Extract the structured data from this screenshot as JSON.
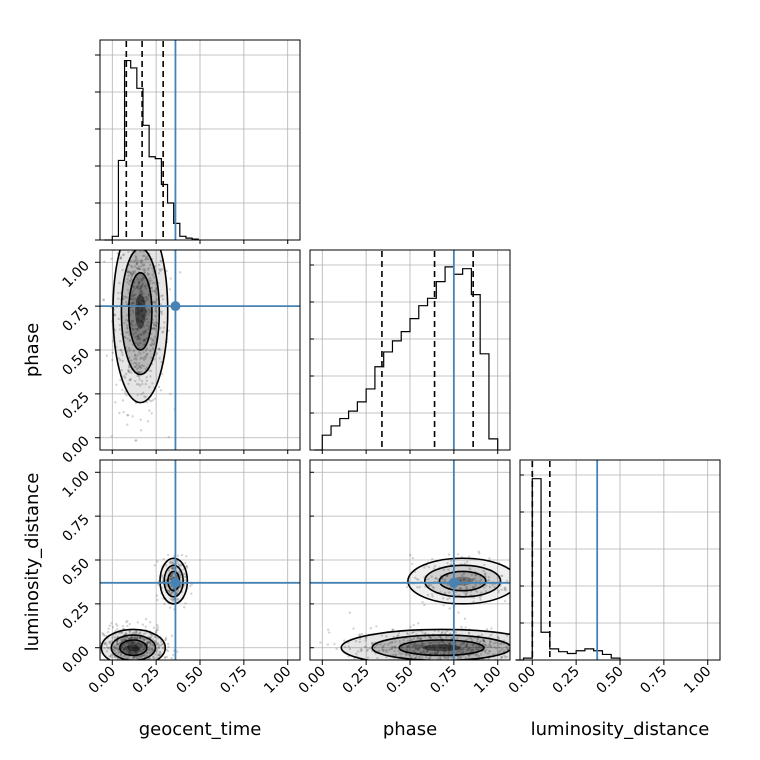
{
  "chart_data": {
    "type": "corner",
    "parameters": [
      "geocent_time",
      "phase",
      "luminosity_distance"
    ],
    "axis_labels": {
      "x": [
        "geocent_time",
        "phase",
        "luminosity_distance"
      ],
      "y_rows": [
        "",
        "phase",
        "luminosity_distance"
      ]
    },
    "tick_labels": [
      "0.00",
      "0.25",
      "0.50",
      "0.75",
      "1.00"
    ],
    "range": [
      -0.07,
      1.07
    ],
    "ticks": [
      0,
      0.25,
      0.5,
      0.75,
      1.0
    ],
    "grid": true,
    "truth_color": "#4682b4",
    "truths": {
      "geocent_time": 0.36,
      "phase": 0.75,
      "luminosity_distance": 0.37
    },
    "quantiles": {
      "geocent_time": [
        0.08,
        0.17,
        0.29
      ],
      "phase": [
        0.34,
        0.64,
        0.86
      ],
      "luminosity_distance": [
        0.0,
        0.0,
        0.1
      ]
    },
    "histograms": {
      "geocent_time": {
        "bins": [
          0.0,
          0.035,
          0.07,
          0.105,
          0.14,
          0.175,
          0.21,
          0.245,
          0.28,
          0.315,
          0.35,
          0.385,
          0.42,
          0.455
        ],
        "counts": [
          0.02,
          0.43,
          0.97,
          0.93,
          0.82,
          0.62,
          0.45,
          0.44,
          0.3,
          0.2,
          0.09,
          0.02,
          0.01,
          0.005
        ]
      },
      "phase": {
        "bins": [
          0.0,
          0.05,
          0.1,
          0.15,
          0.2,
          0.25,
          0.3,
          0.35,
          0.4,
          0.45,
          0.5,
          0.55,
          0.6,
          0.65,
          0.7,
          0.75,
          0.8,
          0.85,
          0.9,
          0.95,
          1.0
        ],
        "counts": [
          0.08,
          0.13,
          0.17,
          0.21,
          0.26,
          0.33,
          0.45,
          0.53,
          0.59,
          0.64,
          0.71,
          0.78,
          0.82,
          0.91,
          0.99,
          0.95,
          0.98,
          0.84,
          0.52,
          0.06
        ]
      },
      "luminosity_distance": {
        "bins": [
          -0.05,
          0.0,
          0.05,
          0.1,
          0.15,
          0.2,
          0.25,
          0.3,
          0.35,
          0.4,
          0.45,
          0.5
        ],
        "counts": [
          0.01,
          0.98,
          0.15,
          0.06,
          0.045,
          0.035,
          0.05,
          0.06,
          0.05,
          0.03,
          0.01
        ]
      }
    },
    "density_cores": [
      {
        "x": "geocent_time",
        "y": "phase",
        "cx": 0.16,
        "cy": 0.72,
        "sx": 0.06,
        "sy": 0.2
      },
      {
        "x": "geocent_time",
        "y": "luminosity_distance",
        "cx": 0.12,
        "cy": 0.0,
        "sx": 0.07,
        "sy": 0.04
      },
      {
        "x": "geocent_time",
        "y": "luminosity_distance",
        "cx": 0.35,
        "cy": 0.38,
        "sx": 0.03,
        "sy": 0.05
      },
      {
        "x": "phase",
        "y": "luminosity_distance",
        "cx": 0.68,
        "cy": 0.0,
        "sx": 0.22,
        "sy": 0.04
      },
      {
        "x": "phase",
        "y": "luminosity_distance",
        "cx": 0.8,
        "cy": 0.38,
        "sx": 0.12,
        "sy": 0.05
      }
    ]
  }
}
